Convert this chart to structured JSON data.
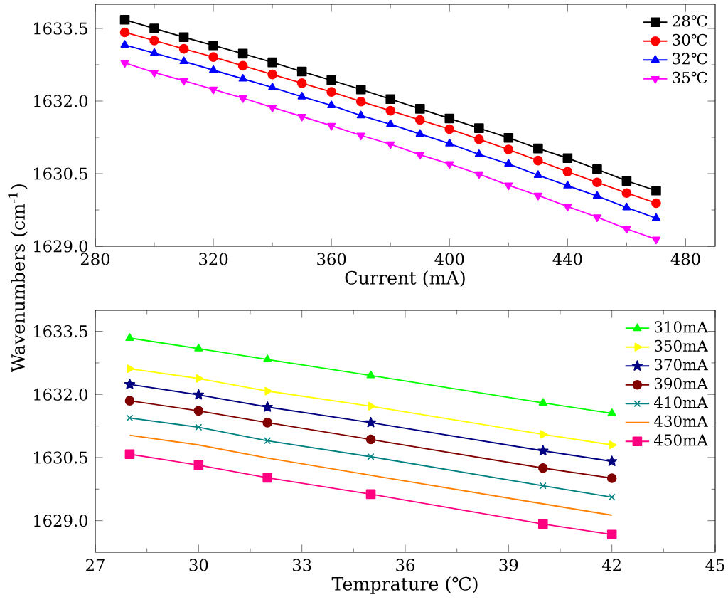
{
  "chart_data": [
    {
      "type": "line",
      "xlabel": "Current (mA)",
      "ylabel": "Wavenumbers (cm$^{-1}$)",
      "x": [
        290,
        300,
        310,
        320,
        330,
        340,
        350,
        360,
        370,
        380,
        390,
        400,
        410,
        420,
        430,
        440,
        450,
        460,
        470
      ],
      "series": [
        {
          "name": "28℃",
          "color": "#000000",
          "marker": "square",
          "values": [
            1633.68,
            1633.5,
            1633.32,
            1633.15,
            1632.98,
            1632.8,
            1632.61,
            1632.43,
            1632.24,
            1632.04,
            1631.84,
            1631.64,
            1631.44,
            1631.24,
            1631.02,
            1630.82,
            1630.59,
            1630.35,
            1630.15
          ]
        },
        {
          "name": "30℃",
          "color": "#ff0000",
          "marker": "circle",
          "values": [
            1633.42,
            1633.25,
            1633.08,
            1632.91,
            1632.73,
            1632.55,
            1632.37,
            1632.19,
            1631.99,
            1631.8,
            1631.61,
            1631.42,
            1631.21,
            1631.0,
            1630.77,
            1630.54,
            1630.32,
            1630.1,
            1629.89
          ]
        },
        {
          "name": "32℃",
          "color": "#0000ff",
          "marker": "triangle",
          "values": [
            1633.16,
            1632.99,
            1632.82,
            1632.64,
            1632.46,
            1632.28,
            1632.09,
            1631.91,
            1631.7,
            1631.52,
            1631.32,
            1631.12,
            1630.9,
            1630.7,
            1630.47,
            1630.25,
            1630.04,
            1629.8,
            1629.58
          ]
        },
        {
          "name": "35℃",
          "color": "#ff00ff",
          "marker": "triangle-down",
          "values": [
            1632.79,
            1632.59,
            1632.42,
            1632.24,
            1632.06,
            1631.87,
            1631.68,
            1631.49,
            1631.29,
            1631.11,
            1630.89,
            1630.7,
            1630.49,
            1630.26,
            1630.05,
            1629.82,
            1629.6,
            1629.36,
            1629.14
          ]
        }
      ],
      "xlim": [
        280,
        490
      ],
      "ylim": [
        1629.0,
        1634.0
      ],
      "xticks": [
        280,
        320,
        360,
        400,
        440,
        480
      ],
      "yticks": [
        {
          "value": 1629,
          "label": "1629.0"
        },
        {
          "value": 1630.5,
          "label": "1630.5"
        },
        {
          "value": 1632,
          "label": "1632.0"
        },
        {
          "value": 1633.5,
          "label": "1633.5"
        }
      ],
      "legend": "top right"
    },
    {
      "type": "line",
      "xlabel": "Temprature (℃)",
      "x": [
        28,
        30,
        32,
        35,
        40,
        42
      ],
      "series": [
        {
          "name": "310mA",
          "color": "#00ff00",
          "marker": "triangle",
          "values": [
            1633.34,
            1633.09,
            1632.83,
            1632.45,
            1631.8,
            1631.55
          ]
        },
        {
          "name": "350mA",
          "color": "#ffff00",
          "marker": "triangle-right",
          "values": [
            1632.61,
            1632.38,
            1632.08,
            1631.72,
            1631.05,
            1630.8
          ]
        },
        {
          "name": "370mA",
          "color": "#000080",
          "marker": "star",
          "values": [
            1632.24,
            1631.99,
            1631.7,
            1631.33,
            1630.66,
            1630.41
          ]
        },
        {
          "name": "390mA",
          "color": "#800000",
          "marker": "circle",
          "values": [
            1631.85,
            1631.61,
            1631.33,
            1630.93,
            1630.25,
            1630.01
          ]
        },
        {
          "name": "410mA",
          "color": "#008080",
          "marker": "cross",
          "values": [
            1631.44,
            1631.22,
            1630.9,
            1630.52,
            1629.83,
            1629.56
          ]
        },
        {
          "name": "430mA",
          "color": "#ff8000",
          "marker": "none",
          "values": [
            1631.03,
            1630.8,
            1630.49,
            1630.08,
            1629.4,
            1629.13
          ]
        },
        {
          "name": "450mA",
          "color": "#ff0080",
          "marker": "square",
          "values": [
            1630.58,
            1630.32,
            1630.02,
            1629.63,
            1628.92,
            1628.67
          ]
        }
      ],
      "xlim": [
        27,
        45
      ],
      "ylim": [
        1628.25,
        1634.0
      ],
      "xticks": [
        27,
        30,
        33,
        36,
        39,
        42,
        45
      ],
      "yticks": [
        {
          "value": 1629,
          "label": "1629.0"
        },
        {
          "value": 1630.5,
          "label": "1630.5"
        },
        {
          "value": 1632,
          "label": "1632.0"
        },
        {
          "value": 1633.5,
          "label": "1633.5"
        }
      ],
      "legend": "top right"
    }
  ]
}
